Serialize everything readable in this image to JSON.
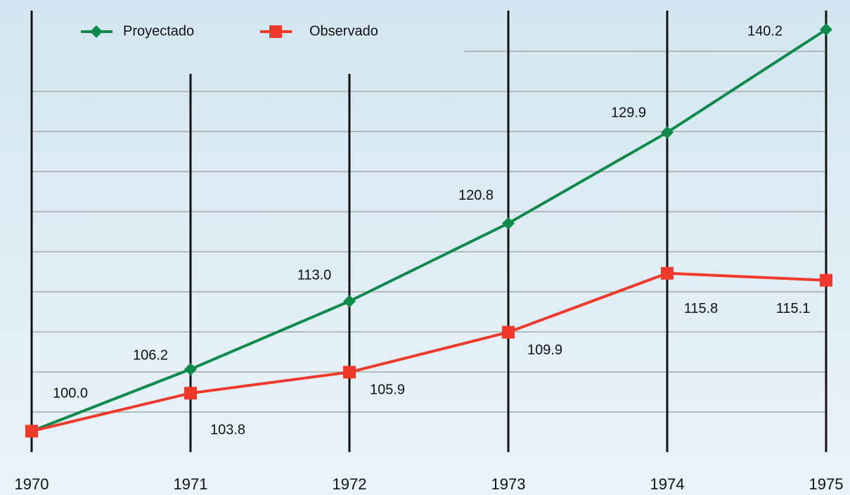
{
  "chart_data": {
    "type": "line",
    "categories": [
      "1970",
      "1971",
      "1972",
      "1973",
      "1974",
      "1975"
    ],
    "series": [
      {
        "name": "Proyectado",
        "color": "#108a4a",
        "values": [
          100.0,
          106.2,
          113.0,
          120.8,
          129.9,
          140.2
        ],
        "value_labels": [
          "100.0",
          "106.2",
          "113.0",
          "120.8",
          "129.9",
          "140.2"
        ]
      },
      {
        "name": "Observado",
        "color": "#f0392b",
        "values": [
          100.0,
          103.8,
          105.9,
          109.9,
          115.8,
          115.1
        ],
        "value_labels": [
          null,
          "103.8",
          "105.9",
          "109.9",
          "115.8",
          "115.1"
        ]
      }
    ],
    "ylim": [
      97.9,
      142.1
    ],
    "grid": true,
    "legend": "top-left"
  }
}
